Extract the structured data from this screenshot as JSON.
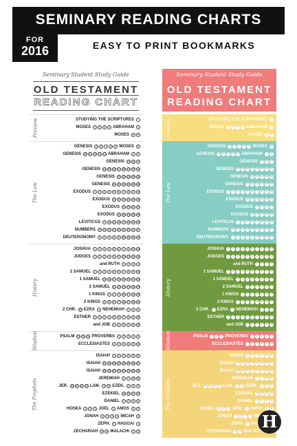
{
  "header": {
    "title": "SEMINARY READING CHARTS",
    "for": "FOR",
    "year": "2016",
    "subtitle": "EASY TO PRINT BOOKMARKS"
  },
  "card": {
    "guide": "Seminary Student Study Guide",
    "title_line1": "OLD TESTAMENT",
    "title_line2": "READING CHART"
  },
  "colors": {
    "pink": "#ef7b7b",
    "yellow": "#f8de7e",
    "teal": "#86cdc4",
    "green": "#6f9a3f",
    "gold": "#f5d57c"
  },
  "sections": [
    {
      "label": "Preview",
      "color": "#f8de7e",
      "rows": [
        {
          "name": "STUDYING THE SCRIPTURES",
          "circles": [
            ""
          ]
        },
        {
          "name": "MOSES",
          "circles": [
            "1",
            "2",
            "3",
            "4"
          ],
          "name2": "ABRAHAM",
          "circles2": [
            "1"
          ]
        },
        {
          "name": "MOSES",
          "circles": [
            "5",
            "6"
          ]
        }
      ]
    },
    {
      "label": "The Law",
      "color": "#86cdc4",
      "rows": [
        {
          "name": "GENESIS",
          "circles": [
            "5",
            "6",
            "7",
            "8",
            "9"
          ],
          "name2": "MOSES",
          "circles2": [
            "6"
          ]
        },
        {
          "name": "GENESIS",
          "circles": [
            "10",
            "11",
            "12",
            "13",
            "14"
          ],
          "name2": "ABRAHAM",
          "circles2": [
            "1",
            "2"
          ]
        },
        {
          "name": "GENESIS",
          "circles": [
            "15",
            "16",
            "17"
          ]
        },
        {
          "name": "GENESIS",
          "circles": [
            "24",
            "25",
            "26",
            "27",
            "28",
            "29",
            "30",
            "31"
          ]
        },
        {
          "name": "GENESIS",
          "circles": [
            "32",
            "33",
            "34",
            "35",
            "36"
          ]
        },
        {
          "name": "GENESIS",
          "circles": [
            "41",
            "42",
            "43",
            "44",
            "45",
            "46"
          ]
        },
        {
          "name": "EXODUS",
          "circles": [
            "1",
            "2",
            "3",
            "4",
            "5",
            "6",
            "7",
            "8",
            "9",
            "10"
          ]
        },
        {
          "name": "EXODUS",
          "circles": [
            "11",
            "12",
            "13",
            "14",
            "15",
            "16"
          ]
        },
        {
          "name": "EXODUS",
          "circles": [
            "19",
            "20",
            "21",
            "22"
          ]
        },
        {
          "name": "EXODUS",
          "circles": [
            "32",
            "33",
            "34",
            "35",
            "36"
          ]
        },
        {
          "name": "LEVITICUS",
          "circles": [
            "1",
            "10",
            "11",
            "16",
            "17",
            "18",
            "19",
            "20"
          ]
        },
        {
          "name": "NUMBERS",
          "circles": [
            "11",
            "12",
            "13",
            "14",
            "20",
            "21",
            "22",
            "23",
            "27"
          ]
        },
        {
          "name": "DEUTERONOMY",
          "circles": [
            "1",
            "4",
            "5",
            "6",
            "8",
            "26",
            "30",
            "31",
            "34"
          ]
        }
      ]
    },
    {
      "label": "History",
      "color": "#6f9a3f",
      "rows": [
        {
          "name": "JOSHUA",
          "circles": [
            "1",
            "2",
            "3",
            "4",
            "5",
            "6",
            "7",
            "8",
            "23",
            "24"
          ]
        },
        {
          "name": "JUDGES",
          "circles": [
            "1",
            "2",
            "3",
            "4",
            "5",
            "6",
            "13",
            "14",
            "15",
            "16"
          ]
        },
        {
          "name": "and RUTH",
          "circles": [
            "1",
            "2",
            "3",
            "4"
          ]
        },
        {
          "name": "1 SAMUEL",
          "circles": [
            "1",
            "2",
            "3",
            "4",
            "5",
            "6",
            "7",
            "8",
            "9",
            "10"
          ]
        },
        {
          "name": "1 SAMUEL",
          "circles": [
            "15",
            "16",
            "17",
            "18",
            "19",
            "20",
            "24",
            "25"
          ]
        },
        {
          "name": "2 SAMUEL",
          "circles": [
            "11",
            "12",
            "13",
            "14",
            "15",
            "24"
          ]
        },
        {
          "name": "1 KINGS",
          "circles": [
            "1",
            "2",
            "3",
            "11",
            "17",
            "18",
            "19"
          ]
        },
        {
          "name": "2 KINGS",
          "circles": [
            "2",
            "5",
            "6",
            "7",
            "16",
            "17",
            "18",
            "22"
          ]
        },
        {
          "name": "2 CHR.",
          "circles": [
            "29"
          ],
          "name2": "EZRA",
          "circles2": [
            "1"
          ],
          "name3": "NEHEMIAH",
          "circles3": [
            "1",
            "2",
            "3"
          ]
        },
        {
          "name": "ESTHER",
          "circles": [
            "1",
            "2",
            "3",
            "4",
            "5",
            "6",
            "7",
            "8",
            "9",
            "10"
          ]
        },
        {
          "name": "and JOB",
          "circles": [
            "1",
            "2",
            "3",
            "4",
            "5",
            "19"
          ]
        }
      ]
    },
    {
      "label": "Wisdom",
      "color": "#ef7b7b",
      "rows": [
        {
          "name": "PSALM",
          "circles": [
            "22",
            "23",
            "24"
          ],
          "name2": "PROVERBS",
          "circles2": [
            "1",
            "2",
            "3",
            "4",
            "5"
          ]
        },
        {
          "name": "ECCLESIASTES",
          "circles": [
            "1",
            "2",
            "3",
            "4",
            "5",
            "12"
          ]
        }
      ]
    },
    {
      "label": "The Prophets",
      "color": "#f5d57c",
      "rows": [
        {
          "name": "ISAIAH",
          "circles": [
            "1",
            "2",
            "3",
            "4",
            "5",
            "6"
          ]
        },
        {
          "name": "ISAIAH",
          "circles": [
            "24",
            "25",
            "26",
            "29",
            "40",
            "45",
            "46",
            "47"
          ]
        },
        {
          "name": "ISAIAH",
          "circles": [
            "48",
            "49",
            "50",
            "51",
            "52",
            "53",
            "54",
            "55"
          ]
        },
        {
          "name": "JEREMIAH",
          "circles": [
            "1",
            "7",
            "16",
            "31"
          ]
        },
        {
          "name": "JER.",
          "circles": [
            "30",
            "31",
            "32",
            "33"
          ],
          "name2": "LAM.",
          "circles2": [
            "1",
            "5"
          ],
          "name3": "EZEK.",
          "circles3": [
            "1",
            "2",
            "3"
          ]
        },
        {
          "name": "EZEKIEL",
          "circles": [
            "18",
            "33",
            "37",
            "47"
          ]
        },
        {
          "name": "DANIEL",
          "circles": [
            "1",
            "2",
            "3",
            "6"
          ]
        },
        {
          "name": "HOSEA",
          "circles": [
            "1",
            "2",
            "3"
          ],
          "name2": "JOEL",
          "circles2": [
            "2"
          ],
          "name3": "AMOS",
          "circles3": [
            "3",
            "9"
          ]
        },
        {
          "name": "JONAH",
          "circles": [
            "1",
            "2",
            "3",
            "4"
          ],
          "name2": "MICAH",
          "circles2": [
            "6"
          ]
        },
        {
          "name": "ZEPH.",
          "circles": [
            "1"
          ],
          "name2": "HAGGAI",
          "circles2": [
            "1"
          ]
        },
        {
          "name": "ZECHARIAH",
          "circles": [
            "13",
            "14"
          ],
          "name2": "MALACHI",
          "circles2": [
            "1",
            "3"
          ]
        }
      ]
    }
  ],
  "logo": {
    "letter": "H",
    "icon": "h-logo-icon"
  }
}
